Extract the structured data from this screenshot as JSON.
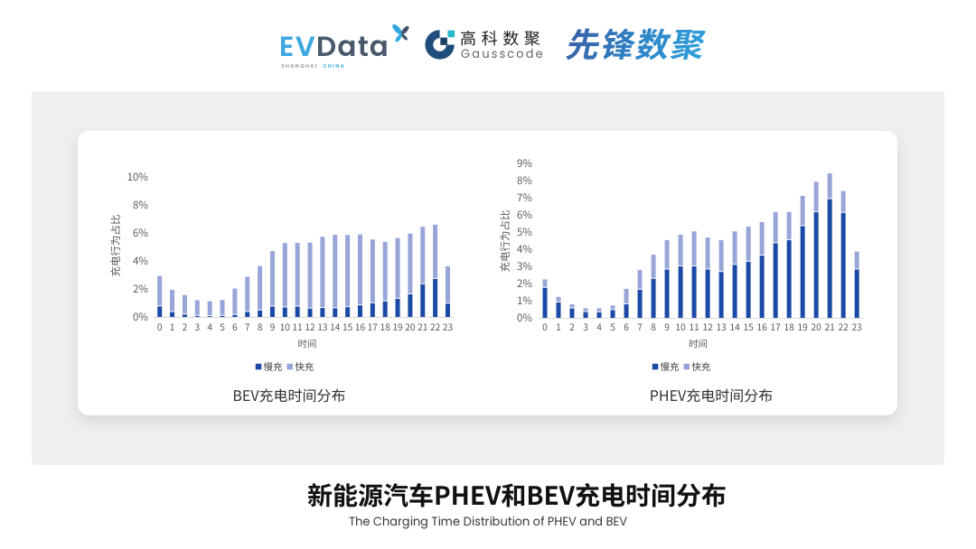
{
  "header": {
    "evdata": {
      "text_ev": "EV",
      "text_data": "Data",
      "sub_left": "SHANGHAI",
      "sub_right": "CHINA",
      "color_blue": "#3ca7e0",
      "color_slate": "#47596b"
    },
    "gausscode": {
      "name_cn": "高科数聚",
      "name_en": "Gausscode",
      "mark_ring_color": "#1f4e7c",
      "mark_square_color": "#1c4265",
      "mark_teal_color": "#25b7cb"
    },
    "xianfeng": {
      "text": "先锋数聚",
      "color_start": "#3a63ab",
      "color_end": "#31a2de"
    }
  },
  "footer": {
    "title": "新能源汽车PHEV和BEV充电时间分布",
    "subtitle": "The Charging Time Distribution of PHEV and BEV"
  },
  "colors": {
    "panel_bg": "#efefef",
    "card_bg": "#ffffff",
    "slow_charge": "#1b49a6",
    "fast_charge": "#98a5d9",
    "axis_line": "#d9d9d9",
    "tick_text": "#595959",
    "chart_title_text": "#303030"
  },
  "chart_data": [
    {
      "type": "bar",
      "stacked": true,
      "title": "BEV充电时间分布",
      "xlabel": "时间",
      "ylabel": "充电行为占比",
      "unit": "%",
      "categories": [
        "0",
        "1",
        "2",
        "3",
        "4",
        "5",
        "6",
        "7",
        "8",
        "9",
        "10",
        "11",
        "12",
        "13",
        "14",
        "15",
        "16",
        "17",
        "18",
        "19",
        "20",
        "21",
        "22",
        "23"
      ],
      "series": [
        {
          "name": "慢充",
          "color": "#1b49a6",
          "values": [
            0.75,
            0.35,
            0.17,
            0.08,
            0.06,
            0.08,
            0.15,
            0.36,
            0.47,
            0.74,
            0.68,
            0.74,
            0.6,
            0.64,
            0.62,
            0.7,
            0.83,
            0.98,
            1.11,
            1.3,
            1.62,
            2.34,
            2.72,
            0.95
          ]
        },
        {
          "name": "快充",
          "color": "#98a5d9",
          "values": [
            2.12,
            1.52,
            1.33,
            1.05,
            1.0,
            1.07,
            1.81,
            2.45,
            3.1,
            3.9,
            4.53,
            4.49,
            4.65,
            5.02,
            5.18,
            5.09,
            5.0,
            4.49,
            4.19,
            4.27,
            4.27,
            4.04,
            3.81,
            2.6
          ]
        }
      ],
      "ylim": [
        0,
        10
      ],
      "ytick_step": 2,
      "grid": false,
      "legend_position": "bottom"
    },
    {
      "type": "bar",
      "stacked": true,
      "title": "PHEV充电时间分布",
      "xlabel": "时间",
      "ylabel": "充电行为占比",
      "unit": "%",
      "categories": [
        "0",
        "1",
        "2",
        "3",
        "4",
        "5",
        "6",
        "7",
        "8",
        "9",
        "10",
        "11",
        "12",
        "13",
        "14",
        "15",
        "16",
        "17",
        "18",
        "19",
        "20",
        "21",
        "22",
        "23"
      ],
      "series": [
        {
          "name": "慢充",
          "color": "#1b49a6",
          "values": [
            1.75,
            0.9,
            0.55,
            0.34,
            0.33,
            0.45,
            0.79,
            1.64,
            2.28,
            2.82,
            3.0,
            3.0,
            2.82,
            2.67,
            3.09,
            3.27,
            3.63,
            4.35,
            4.53,
            5.35,
            6.16,
            6.92,
            6.12,
            2.82
          ]
        },
        {
          "name": "快充",
          "color": "#98a5d9",
          "values": [
            0.44,
            0.27,
            0.19,
            0.17,
            0.18,
            0.22,
            0.85,
            1.09,
            1.35,
            1.66,
            1.79,
            1.99,
            1.81,
            1.81,
            1.9,
            1.99,
            1.9,
            1.77,
            1.59,
            1.71,
            1.72,
            1.45,
            1.22,
            0.99
          ]
        }
      ],
      "ylim": [
        0,
        9
      ],
      "ytick_step": 1,
      "grid": false,
      "legend_position": "bottom"
    }
  ]
}
